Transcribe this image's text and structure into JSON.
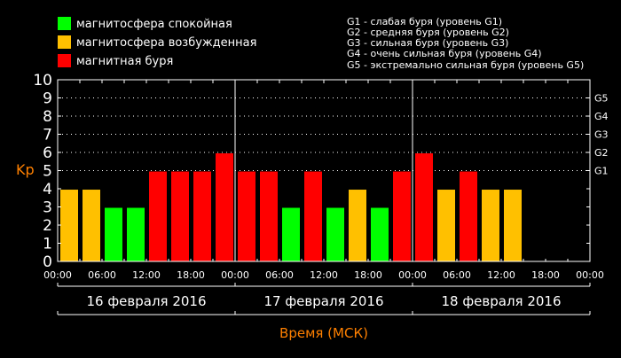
{
  "legend": [
    {
      "label": "магнитосфера спокойная",
      "color": "#00ff00"
    },
    {
      "label": "магнитосфера возбужденная",
      "color": "#ffc000"
    },
    {
      "label": "магнитная буря",
      "color": "#ff0000"
    }
  ],
  "g_legend": [
    "G1 - слабая буря (уровень G1)",
    "G2 - средняя буря (уровень G2)",
    "G3 - сильная буря (уровень G3)",
    "G4 - очень сильная буря (уровень G4)",
    "G5 - экстремально сильная буря (уровень G5)"
  ],
  "chart_data": {
    "type": "bar",
    "ylabel": "Kp",
    "xlabel": "Время (МСК)",
    "ylim": [
      0,
      10
    ],
    "yticks": [
      "0",
      "1",
      "2",
      "3",
      "4",
      "5",
      "6",
      "7",
      "8",
      "9",
      "10"
    ],
    "g_levels": [
      {
        "label": "G1",
        "kp": 5
      },
      {
        "label": "G2",
        "kp": 6
      },
      {
        "label": "G3",
        "kp": 7
      },
      {
        "label": "G4",
        "kp": 8
      },
      {
        "label": "G5",
        "kp": 9
      }
    ],
    "grid": "dotted horizontal at Kp 5-9",
    "time_ticks": [
      "00:00",
      "06:00",
      "12:00",
      "18:00",
      "00:00",
      "06:00",
      "12:00",
      "18:00",
      "00:00",
      "06:00",
      "12:00",
      "18:00",
      "00:00"
    ],
    "days": [
      "16 февраля 2016",
      "17 февраля 2016",
      "18 февраля 2016"
    ],
    "interval_hours": 3,
    "values": [
      4,
      4,
      3,
      3,
      5,
      5,
      5,
      6,
      5,
      5,
      3,
      5,
      3,
      4,
      3,
      5,
      6,
      4,
      5,
      4,
      4,
      null,
      null,
      null
    ],
    "colors": {
      "quiet": "#00ff00",
      "active": "#ffc000",
      "storm": "#ff0000",
      "label": "#ff8000"
    }
  }
}
